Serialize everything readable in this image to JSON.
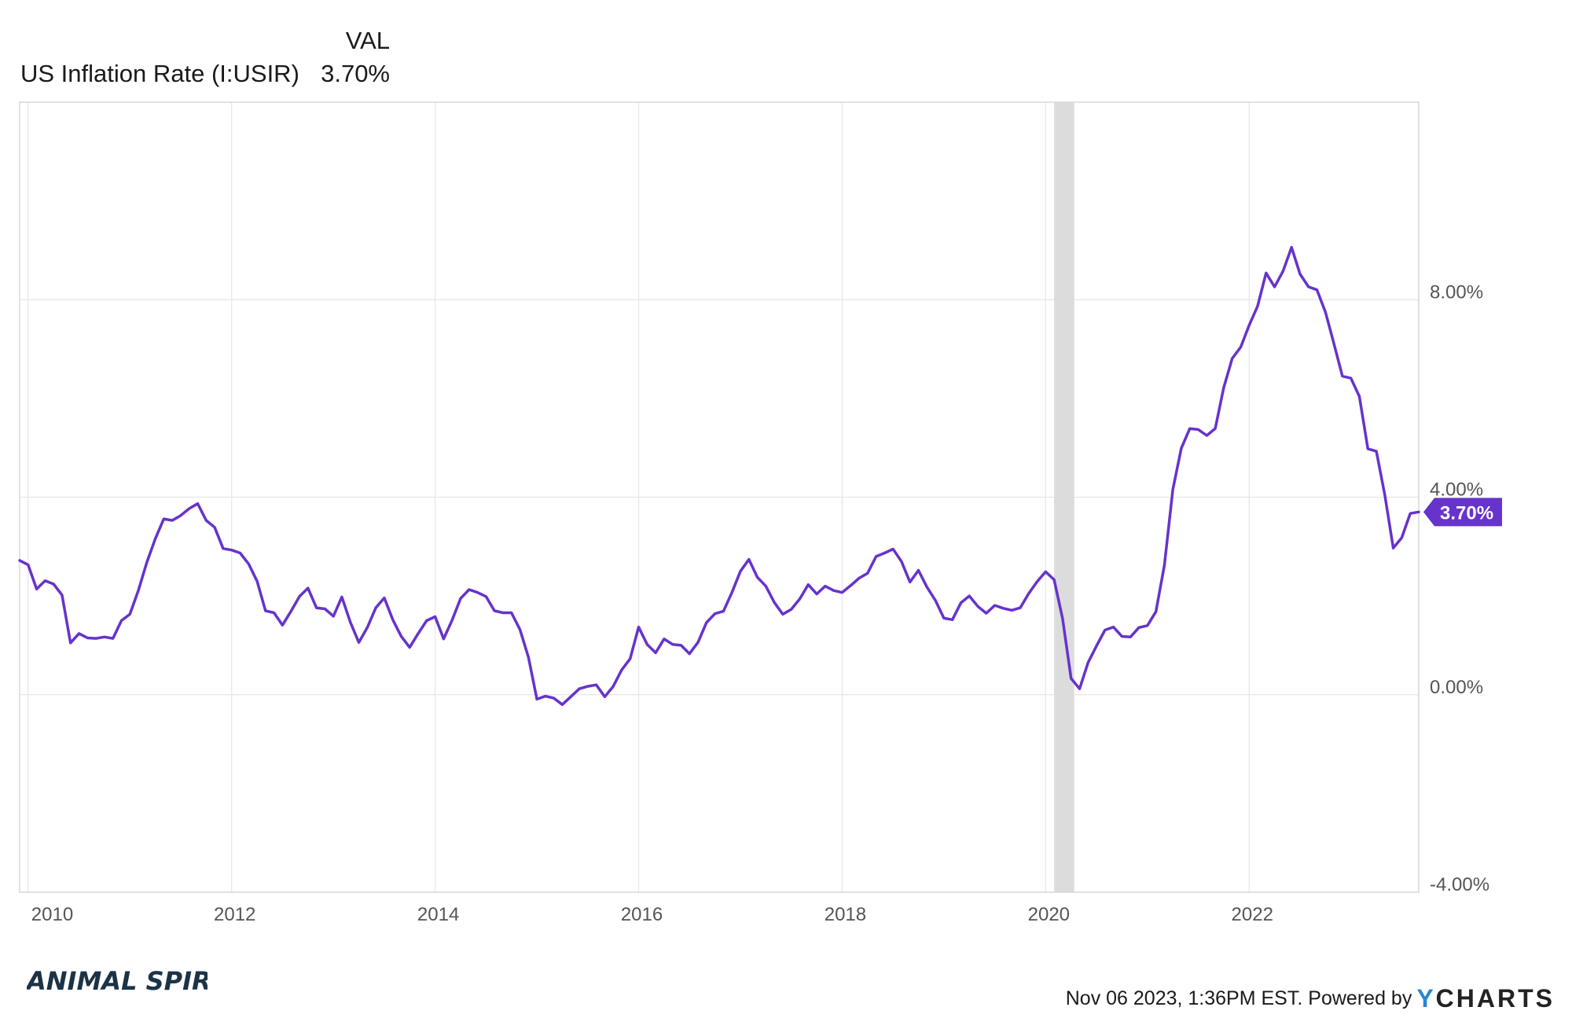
{
  "header": {
    "column_label": "VAL",
    "series_label": "US Inflation Rate (I:USIR)",
    "series_value": "3.70%"
  },
  "footer": {
    "logo_text": "ANIMAL SPIRITS",
    "timestamp": "Nov 06 2023, 1:36PM EST.",
    "powered_by": "Powered by",
    "brand_y": "Y",
    "brand_rest": "CHARTS"
  },
  "colors": {
    "series": "#6633cc",
    "shade": "#dcdcdc",
    "grid": "#e6e6e6",
    "axis_text": "#555555",
    "logo": "#1c3346"
  },
  "chart_data": {
    "type": "line",
    "title": "",
    "xlabel": "",
    "ylabel": "",
    "ylim": [
      -4,
      12
    ],
    "xlim": [
      "2009-12",
      "2023-09"
    ],
    "x_ticks": [
      "2010",
      "2012",
      "2014",
      "2016",
      "2018",
      "2020",
      "2022"
    ],
    "y_ticks": [
      "-4.00%",
      "0.00%",
      "4.00%",
      "8.00%"
    ],
    "y_tick_values": [
      -4,
      0,
      4,
      8
    ],
    "grid": true,
    "recession_shading": {
      "start": "2020-02",
      "end": "2020-04"
    },
    "last_value_label": "3.70%",
    "series": [
      {
        "name": "US Inflation Rate (I:USIR)",
        "start": "2009-12",
        "frequency": "monthly",
        "unit": "%",
        "values": [
          2.72,
          2.63,
          2.14,
          2.31,
          2.24,
          2.02,
          1.05,
          1.24,
          1.15,
          1.14,
          1.17,
          1.14,
          1.5,
          1.63,
          2.11,
          2.68,
          3.16,
          3.56,
          3.53,
          3.63,
          3.77,
          3.87,
          3.53,
          3.39,
          2.96,
          2.93,
          2.87,
          2.65,
          2.3,
          1.7,
          1.66,
          1.41,
          1.69,
          1.99,
          2.16,
          1.76,
          1.74,
          1.59,
          1.98,
          1.47,
          1.06,
          1.36,
          1.76,
          1.96,
          1.52,
          1.18,
          0.96,
          1.24,
          1.5,
          1.58,
          1.13,
          1.51,
          1.95,
          2.13,
          2.07,
          1.99,
          1.7,
          1.66,
          1.66,
          1.32,
          0.76,
          -0.09,
          -0.03,
          -0.07,
          -0.2,
          -0.04,
          0.12,
          0.17,
          0.2,
          -0.04,
          0.17,
          0.5,
          0.73,
          1.37,
          1.02,
          0.85,
          1.13,
          1.02,
          1.0,
          0.83,
          1.06,
          1.46,
          1.64,
          1.69,
          2.07,
          2.5,
          2.74,
          2.38,
          2.2,
          1.87,
          1.63,
          1.73,
          1.94,
          2.23,
          2.04,
          2.2,
          2.11,
          2.07,
          2.21,
          2.36,
          2.46,
          2.8,
          2.87,
          2.95,
          2.7,
          2.28,
          2.52,
          2.18,
          1.91,
          1.55,
          1.52,
          1.86,
          2.0,
          1.79,
          1.65,
          1.81,
          1.75,
          1.71,
          1.76,
          2.05,
          2.29,
          2.49,
          2.33,
          1.54,
          0.33,
          0.12,
          0.65,
          0.99,
          1.31,
          1.37,
          1.18,
          1.17,
          1.36,
          1.4,
          1.68,
          2.62,
          4.16,
          4.99,
          5.39,
          5.37,
          5.25,
          5.39,
          6.22,
          6.81,
          7.04,
          7.48,
          7.87,
          8.54,
          8.26,
          8.58,
          9.06,
          8.52,
          8.26,
          8.2,
          7.75,
          7.11,
          6.45,
          6.41,
          6.04,
          4.98,
          4.93,
          4.05,
          2.97,
          3.18,
          3.67,
          3.7
        ]
      }
    ]
  }
}
